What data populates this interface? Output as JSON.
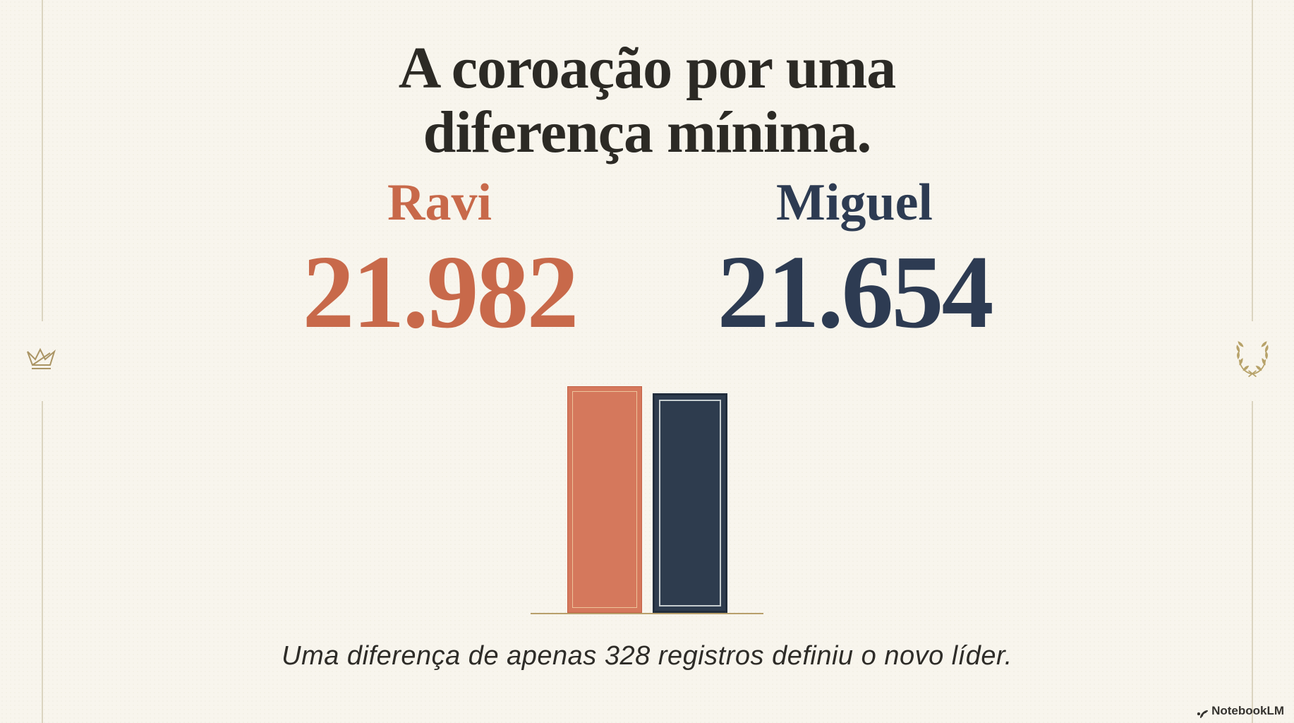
{
  "title": {
    "line1": "A coroação por uma",
    "line2": "diferença mínima."
  },
  "contenders": [
    {
      "name": "Ravi",
      "value_label": "21.982",
      "value": 21982,
      "text_color": "#c8694a",
      "bar_color": "#d5785c"
    },
    {
      "name": "Miguel",
      "value_label": "21.654",
      "value": 21654,
      "text_color": "#2d3b52",
      "bar_color": "#2e3c4e"
    }
  ],
  "caption": "Uma diferença de apenas 328 registros definiu o novo líder.",
  "branding": {
    "logo_label": "NotebookLM"
  },
  "decorations": {
    "left_icon": "crown",
    "right_icon": "laurel-wreath",
    "gold": "#b39d6b"
  },
  "colors": {
    "background": "#f8f5ed",
    "ink": "#2c2a25",
    "accent_orange": "#c8694a",
    "accent_navy": "#2d3b52",
    "gold_line": "#b89f6b"
  },
  "chart_data": {
    "type": "bar",
    "categories": [
      "Ravi",
      "Miguel"
    ],
    "values": [
      21982,
      21654
    ],
    "value_labels": [
      "21.982",
      "21.654"
    ],
    "series_colors": [
      "#d5785c",
      "#2e3c4e"
    ],
    "title": "A coroação por uma diferença mínima.",
    "annotation": "Uma diferença de apenas 328 registros definiu o novo líder.",
    "difference": 328,
    "legend": "none",
    "grid": false,
    "axes_labels": "none"
  }
}
